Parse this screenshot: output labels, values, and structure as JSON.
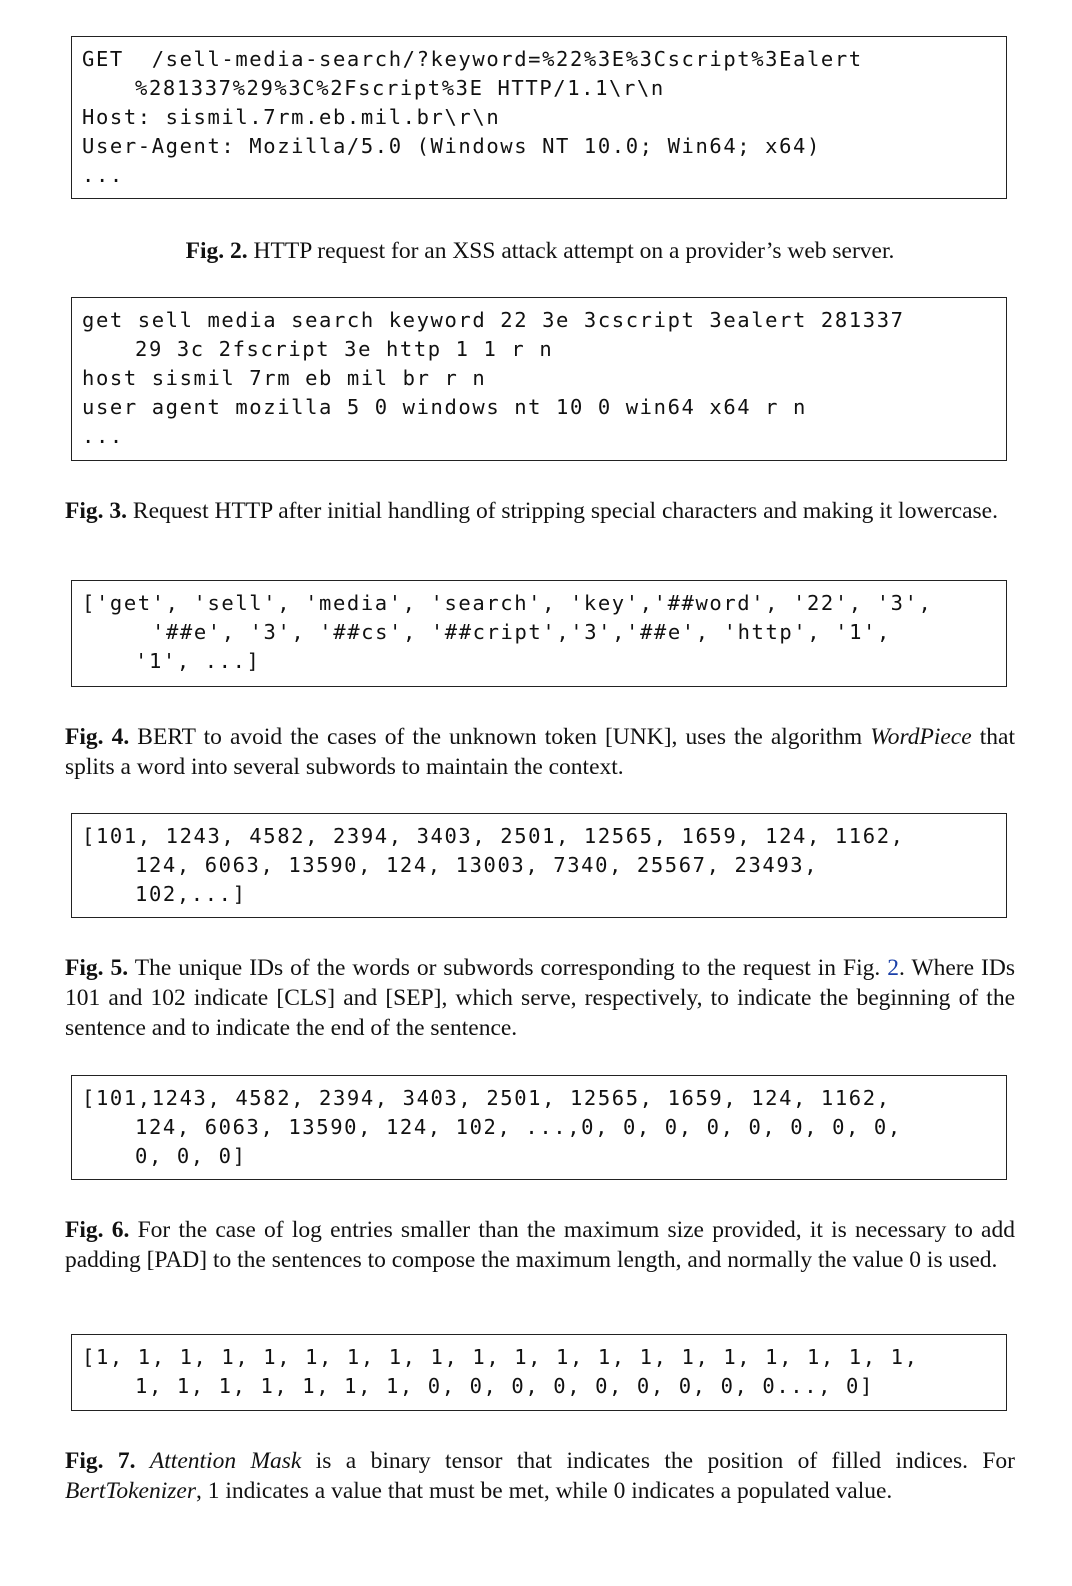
{
  "figures": [
    {
      "code_lines": [
        "GET  /sell-media-search/?keyword=%22%3E%3Cscript%3Ealert",
        "%281337%29%3C%2Fscript%3E HTTP/1.1\\r\\n",
        "Host: sismil.7rm.eb.mil.br\\r\\n",
        "User-Agent: Mozilla/5.0 (Windows NT 10.0; Win64; x64)",
        "..."
      ],
      "caption_label": "Fig. 2.",
      "caption_text": " HTTP request for an XSS attack attempt on a provider’s web server."
    },
    {
      "code_lines": [
        "get sell media search keyword 22 3e 3cscript 3ealert 281337",
        "29 3c 2fscript 3e http 1 1 r n",
        "host sismil 7rm eb mil br r n",
        "user agent mozilla 5 0 windows nt 10 0 win64 x64 r n",
        "..."
      ],
      "caption_label": "Fig. 3.",
      "caption_text": " Request HTTP after initial handling of stripping special characters and making it lowercase."
    },
    {
      "code_lines": [
        "['get', 'sell', 'media', 'search', 'key','##word', '22', '3',",
        "'##e', '3', '##cs', '##cript','3','##e', 'http', '1',",
        "'1', ...]"
      ],
      "caption_label": "Fig. 4.",
      "caption_text_1": " BERT to avoid the cases of the unknown token [UNK], uses the algorithm ",
      "caption_em": "WordPiece",
      "caption_text_2": " that splits a word into several subwords to maintain the context."
    },
    {
      "code_lines": [
        "[101, 1243, 4582, 2394, 3403, 2501, 12565, 1659, 124, 1162,",
        "124, 6063, 13590, 124, 13003, 7340, 25567, 23493,",
        "102,...]"
      ],
      "caption_label": "Fig. 5.",
      "caption_text_1": " The unique IDs of the words or subwords corresponding to the request in Fig. ",
      "caption_ref": "2",
      "caption_text_2": ". Where IDs 101 and 102 indicate [CLS] and [SEP], which serve, respectively, to indicate the beginning of the sentence and to indicate the end of the sentence."
    },
    {
      "code_lines": [
        "[101,1243, 4582, 2394, 3403, 2501, 12565, 1659, 124, 1162,",
        "124, 6063, 13590, 124, 102, ...,0, 0, 0, 0, 0, 0, 0, 0,",
        "0, 0, 0]"
      ],
      "caption_label": "Fig. 6.",
      "caption_text": " For the case of log entries smaller than the maximum size provided, it is necessary to add padding [PAD] to the sentences to compose the maximum length, and normally the value 0 is used."
    },
    {
      "code_lines": [
        "[1, 1, 1, 1, 1, 1, 1, 1, 1, 1, 1, 1, 1, 1, 1, 1, 1, 1, 1, 1,",
        "1, 1, 1, 1, 1, 1, 1, 0, 0, 0, 0, 0, 0, 0, 0, 0..., 0]"
      ],
      "caption_label": "Fig. 7.",
      "caption_em_1": "Attention Mask",
      "caption_text_1": " is a binary tensor that indicates the position of filled indices. For ",
      "caption_em_2": "BertTokenizer",
      "caption_text_2": ", 1 indicates a value that must be met, while 0 indicates a populated value."
    }
  ]
}
